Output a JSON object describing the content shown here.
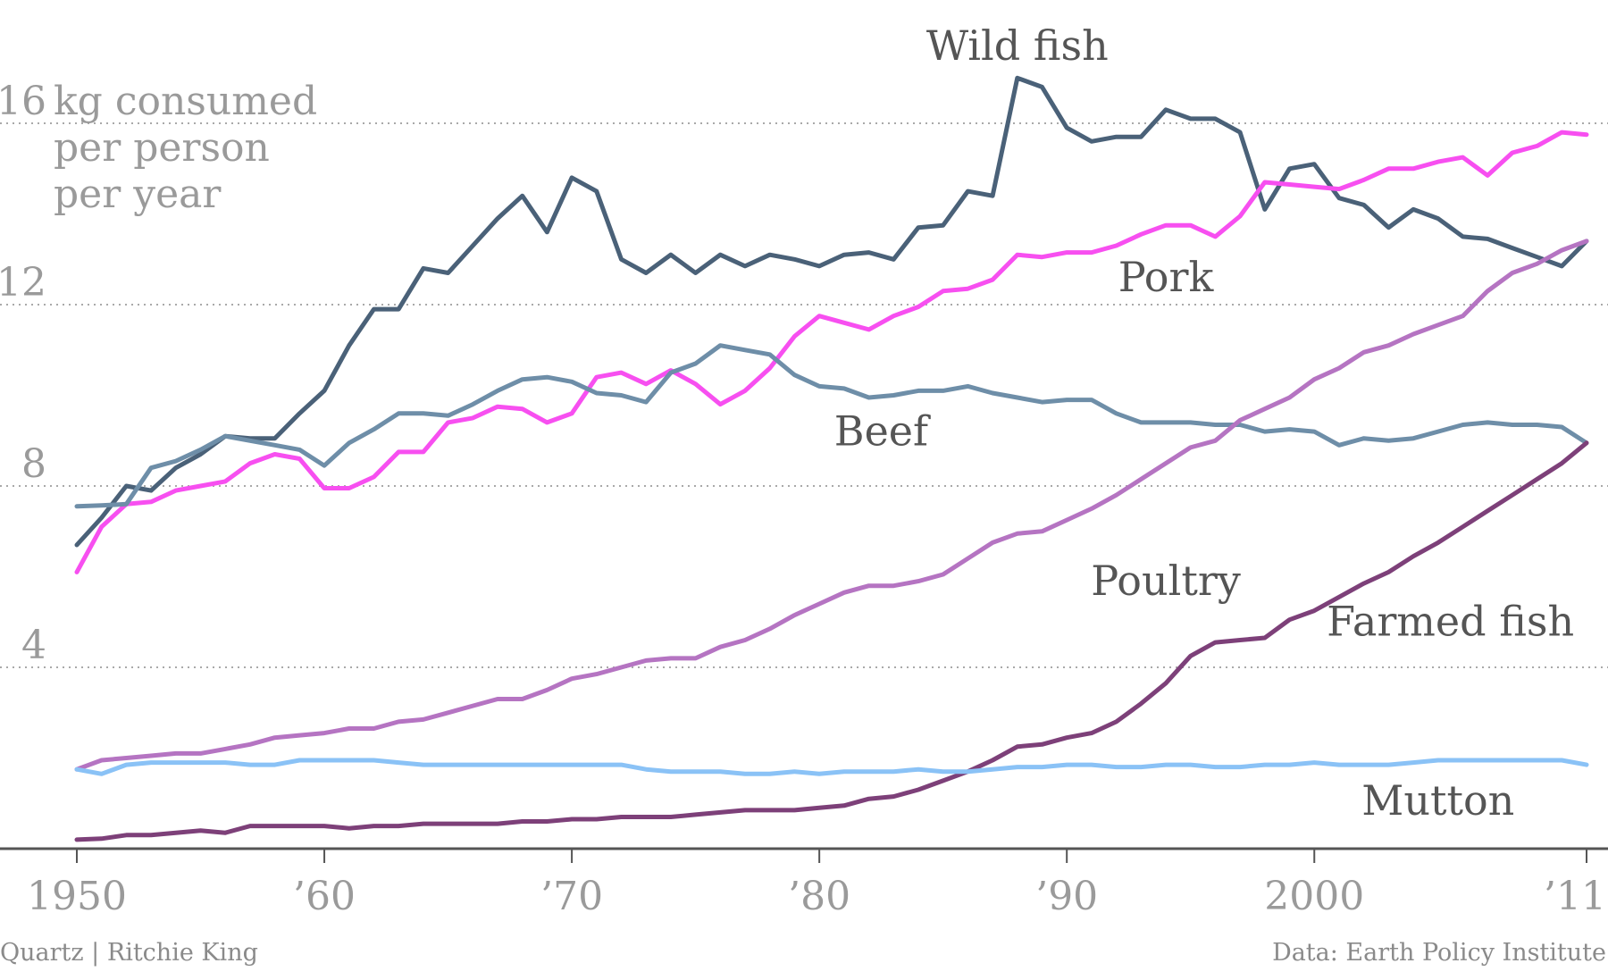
{
  "chart_data": {
    "type": "line",
    "ylabel_lines": [
      "kg consumed",
      "per person",
      "per year"
    ],
    "ylim": [
      0,
      16
    ],
    "yticks": [
      4,
      8,
      12,
      16
    ],
    "xlim": [
      1950,
      2011
    ],
    "xticks": [
      {
        "value": 1950,
        "label": "1950"
      },
      {
        "value": 1960,
        "label": "’60"
      },
      {
        "value": 1970,
        "label": "’70"
      },
      {
        "value": 1980,
        "label": "’80"
      },
      {
        "value": 1990,
        "label": "’90"
      },
      {
        "value": 2000,
        "label": "2000"
      },
      {
        "value": 2011,
        "label": "’11"
      }
    ],
    "grid": "horizontal-dotted",
    "x": [
      1950,
      1951,
      1952,
      1953,
      1954,
      1955,
      1956,
      1957,
      1958,
      1959,
      1960,
      1961,
      1962,
      1963,
      1964,
      1965,
      1966,
      1967,
      1968,
      1969,
      1970,
      1971,
      1972,
      1973,
      1974,
      1975,
      1976,
      1977,
      1978,
      1979,
      1980,
      1981,
      1982,
      1983,
      1984,
      1985,
      1986,
      1987,
      1988,
      1989,
      1990,
      1991,
      1992,
      1993,
      1994,
      1995,
      1996,
      1997,
      1998,
      1999,
      2000,
      2001,
      2002,
      2003,
      2004,
      2005,
      2006,
      2007,
      2008,
      2009,
      2010,
      2011
    ],
    "series": [
      {
        "name": "Wild fish",
        "color": "#4a6178",
        "values": [
          6.7,
          7.3,
          8.0,
          7.9,
          8.4,
          8.7,
          9.1,
          9.05,
          9.05,
          9.6,
          10.1,
          11.1,
          11.9,
          11.9,
          12.8,
          12.7,
          13.3,
          13.9,
          14.4,
          13.6,
          14.8,
          14.5,
          13.0,
          12.7,
          13.1,
          12.7,
          13.1,
          12.85,
          13.1,
          13.0,
          12.85,
          13.1,
          13.15,
          13.0,
          13.7,
          13.75,
          14.5,
          14.4,
          17.0,
          16.8,
          15.9,
          15.6,
          15.7,
          15.7,
          16.3,
          16.1,
          16.1,
          15.8,
          14.1,
          15.0,
          15.1,
          14.35,
          14.2,
          13.7,
          14.1,
          13.9,
          13.5,
          13.45,
          13.25,
          13.05,
          12.85,
          13.4
        ]
      },
      {
        "name": "Pork",
        "color": "#f74ff0",
        "values": [
          6.1,
          7.1,
          7.6,
          7.65,
          7.9,
          8.0,
          8.1,
          8.5,
          8.7,
          8.6,
          7.95,
          7.95,
          8.2,
          8.75,
          8.75,
          9.4,
          9.5,
          9.75,
          9.7,
          9.4,
          9.6,
          10.4,
          10.5,
          10.25,
          10.55,
          10.25,
          9.8,
          10.1,
          10.6,
          11.3,
          11.75,
          11.6,
          11.45,
          11.75,
          11.95,
          12.3,
          12.35,
          12.55,
          13.1,
          13.05,
          13.15,
          13.15,
          13.3,
          13.55,
          13.75,
          13.75,
          13.5,
          13.95,
          14.7,
          14.65,
          14.6,
          14.55,
          14.75,
          15.0,
          15.0,
          15.15,
          15.25,
          14.85,
          15.35,
          15.5,
          15.8,
          15.75
        ]
      },
      {
        "name": "Beef",
        "color": "#6e8ea8",
        "values": [
          7.55,
          7.57,
          7.6,
          8.4,
          8.55,
          8.8,
          9.1,
          9.0,
          8.9,
          8.8,
          8.45,
          8.95,
          9.25,
          9.6,
          9.6,
          9.55,
          9.8,
          10.1,
          10.35,
          10.4,
          10.3,
          10.05,
          10.0,
          9.85,
          10.5,
          10.7,
          11.1,
          11.0,
          10.9,
          10.45,
          10.2,
          10.15,
          9.95,
          10.0,
          10.1,
          10.1,
          10.2,
          10.05,
          9.95,
          9.85,
          9.9,
          9.9,
          9.6,
          9.4,
          9.4,
          9.4,
          9.35,
          9.35,
          9.2,
          9.25,
          9.2,
          8.9,
          9.05,
          9.0,
          9.05,
          9.2,
          9.35,
          9.4,
          9.35,
          9.35,
          9.3,
          8.95
        ]
      },
      {
        "name": "Poultry",
        "color": "#b574c2",
        "values": [
          1.75,
          1.95,
          2.0,
          2.05,
          2.1,
          2.1,
          2.2,
          2.3,
          2.45,
          2.5,
          2.55,
          2.65,
          2.65,
          2.8,
          2.85,
          3.0,
          3.15,
          3.3,
          3.3,
          3.5,
          3.75,
          3.85,
          4.0,
          4.15,
          4.2,
          4.2,
          4.45,
          4.6,
          4.85,
          5.15,
          5.4,
          5.65,
          5.8,
          5.8,
          5.9,
          6.05,
          6.4,
          6.75,
          6.95,
          7.0,
          7.25,
          7.5,
          7.8,
          8.15,
          8.5,
          8.85,
          9.0,
          9.45,
          9.7,
          9.95,
          10.35,
          10.6,
          10.95,
          11.1,
          11.35,
          11.55,
          11.75,
          12.3,
          12.7,
          12.9,
          13.2,
          13.4
        ]
      },
      {
        "name": "Farmed fish",
        "color": "#7d4079",
        "values": [
          0.2,
          0.22,
          0.3,
          0.3,
          0.35,
          0.4,
          0.35,
          0.5,
          0.5,
          0.5,
          0.5,
          0.45,
          0.5,
          0.5,
          0.55,
          0.55,
          0.55,
          0.55,
          0.6,
          0.6,
          0.65,
          0.65,
          0.7,
          0.7,
          0.7,
          0.75,
          0.8,
          0.85,
          0.85,
          0.85,
          0.9,
          0.95,
          1.1,
          1.15,
          1.3,
          1.5,
          1.7,
          1.95,
          2.25,
          2.3,
          2.45,
          2.55,
          2.8,
          3.2,
          3.65,
          4.25,
          4.55,
          4.6,
          4.65,
          5.05,
          5.25,
          5.55,
          5.85,
          6.1,
          6.45,
          6.75,
          7.1,
          7.45,
          7.8,
          8.15,
          8.5,
          8.95
        ]
      },
      {
        "name": "Mutton",
        "color": "#8ac2f6",
        "values": [
          1.75,
          1.65,
          1.85,
          1.9,
          1.9,
          1.9,
          1.9,
          1.85,
          1.85,
          1.95,
          1.95,
          1.95,
          1.95,
          1.9,
          1.85,
          1.85,
          1.85,
          1.85,
          1.85,
          1.85,
          1.85,
          1.85,
          1.85,
          1.75,
          1.7,
          1.7,
          1.7,
          1.65,
          1.65,
          1.7,
          1.65,
          1.7,
          1.7,
          1.7,
          1.75,
          1.7,
          1.7,
          1.75,
          1.8,
          1.8,
          1.85,
          1.85,
          1.8,
          1.8,
          1.85,
          1.85,
          1.8,
          1.8,
          1.85,
          1.85,
          1.9,
          1.85,
          1.85,
          1.85,
          1.9,
          1.95,
          1.95,
          1.95,
          1.95,
          1.95,
          1.95,
          1.85
        ]
      }
    ],
    "annotations": {
      "source": "Data: Earth Policy Institute",
      "credit": "Quartz | Ritchie King"
    }
  }
}
